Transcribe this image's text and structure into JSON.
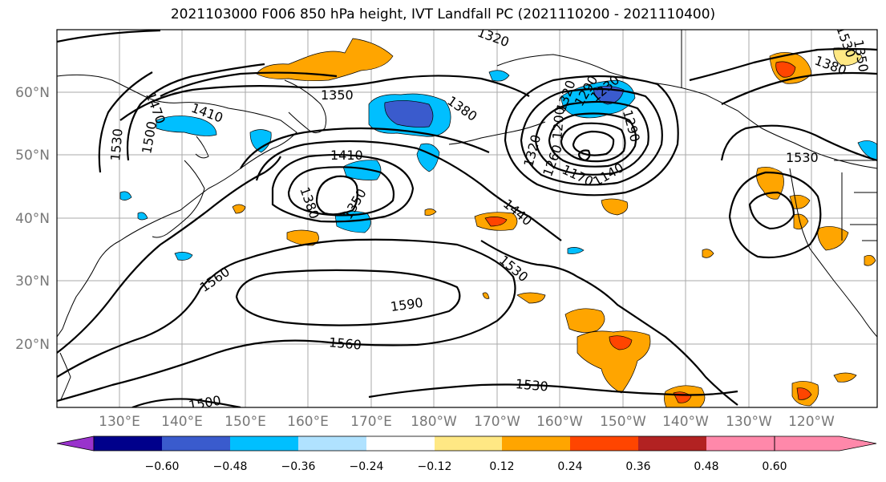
{
  "title": "2021103000 F006 850 hPa height, IVT Landfall PC (2021110200 - 2021110400)",
  "map": {
    "lat_labels": [
      "60°N",
      "50°N",
      "40°N",
      "30°N",
      "20°N"
    ],
    "lon_labels": [
      "130°E",
      "140°E",
      "150°E",
      "160°E",
      "170°E",
      "180°W",
      "170°W",
      "160°W",
      "150°W",
      "140°W",
      "130°W",
      "120°W"
    ],
    "contour_labels": [
      "1470",
      "1410",
      "1350",
      "1380",
      "1500",
      "1530",
      "1410",
      "1380",
      "1350",
      "1560",
      "1590",
      "1560",
      "1530",
      "1500",
      "1320",
      "1260",
      "1200",
      "1170",
      "1140",
      "1290",
      "1440",
      "1530",
      "1530",
      "1380",
      "1350",
      "1320",
      "1290",
      "1230",
      "1530",
      "1320"
    ]
  },
  "colorbar": {
    "ticks": [
      "−0.60",
      "−0.48",
      "−0.36",
      "−0.24",
      "−0.12",
      "0.12",
      "0.24",
      "0.36",
      "0.48",
      "0.60"
    ],
    "colors": [
      "#9932cc",
      "#00008b",
      "#3a5bcd",
      "#00bfff",
      "#b0e2ff",
      "#ffffff",
      "#ffe884",
      "#ffa500",
      "#ff4500",
      "#b22222",
      "#ff88aa"
    ]
  }
}
